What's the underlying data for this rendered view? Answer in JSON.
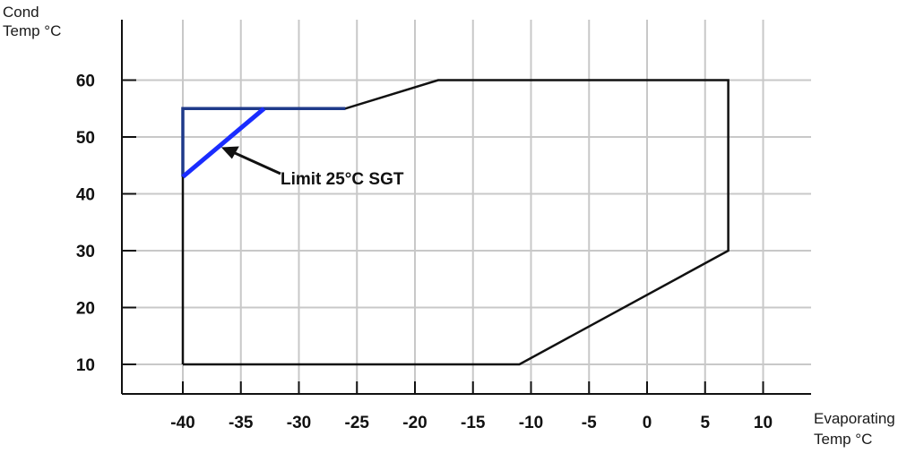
{
  "chart_data": {
    "type": "line",
    "title": "",
    "ylabel_lines": [
      "Cond",
      "Temp °C"
    ],
    "xlabel_lines": [
      "Evaporating",
      "Temp °C"
    ],
    "xlim": [
      -45,
      14
    ],
    "ylim": [
      4,
      62
    ],
    "x_ticks": [
      -40,
      -35,
      -30,
      -25,
      -20,
      -15,
      -10,
      -5,
      0,
      5,
      10
    ],
    "y_ticks": [
      10,
      20,
      30,
      40,
      50,
      60
    ],
    "grid": true,
    "series": [
      {
        "color": "#111111",
        "points": [
          [
            -40,
            10
          ],
          [
            -40,
            55
          ],
          [
            -26,
            55
          ],
          [
            -18,
            60
          ],
          [
            7,
            60
          ],
          [
            7,
            30
          ],
          [
            -11,
            10
          ],
          [
            -40,
            10
          ]
        ]
      },
      {
        "color": "#1f3a8a",
        "points": [
          [
            -40,
            43
          ],
          [
            -40,
            55
          ],
          [
            -26,
            55
          ]
        ]
      },
      {
        "color": "#1a2cff",
        "points": [
          [
            -40,
            43
          ],
          [
            -33,
            55
          ]
        ]
      }
    ],
    "annotation": {
      "text": "Limit 25°C SGT",
      "arrow_to": [
        -37,
        48.5
      ]
    }
  }
}
